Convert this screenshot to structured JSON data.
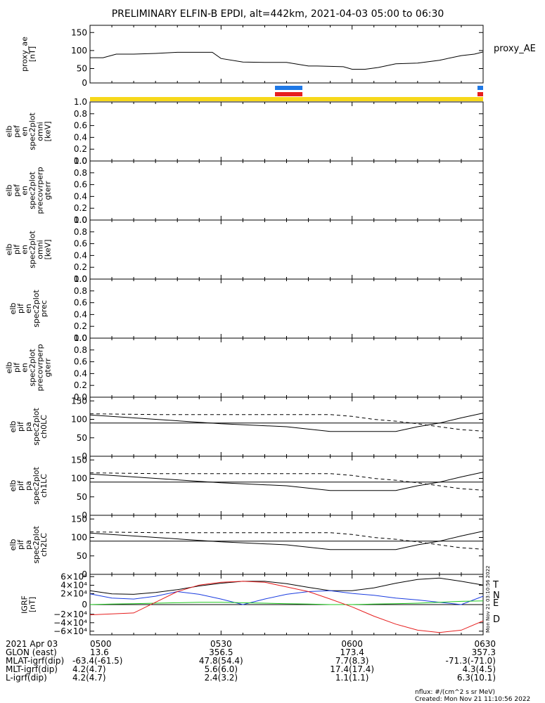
{
  "title": "PRELIMINARY ELFIN-B EPDI, alt=442km, 2021-04-03 05:00 to 06:30",
  "side_label": "proxy_AE",
  "bars": {
    "blue": "#1e78e6",
    "red": "#e61e1e",
    "yellow": "#f7d81a"
  },
  "panels": [
    {
      "id": "proxy-ae",
      "ylabel_lines": [
        "proxy_ae",
        "[nT]"
      ],
      "ticks": [
        "150",
        "100",
        "50",
        "0"
      ]
    },
    {
      "id": "pef-en-omni",
      "ylabel_lines": [
        "elb",
        "pef",
        "en",
        "spec2plot",
        "omni",
        "[keV]"
      ],
      "ticks": [
        "1.0",
        "0.8",
        "0.6",
        "0.4",
        "0.2",
        "0.0"
      ]
    },
    {
      "id": "pef-en-precovrperp",
      "ylabel_lines": [
        "elb",
        "pef",
        "en",
        "spec2plot",
        "precovrperp",
        "gterr"
      ],
      "ticks": [
        "1.0",
        "0.8",
        "0.6",
        "0.4",
        "0.2",
        "0.0"
      ]
    },
    {
      "id": "pif-en-omni",
      "ylabel_lines": [
        "elb",
        "pif",
        "en",
        "spec2plot",
        "omni",
        "[keV]"
      ],
      "ticks": [
        "1.0",
        "0.8",
        "0.6",
        "0.4",
        "0.2",
        "0.0"
      ]
    },
    {
      "id": "pif-en-prec",
      "ylabel_lines": [
        "elb",
        "pif",
        "en",
        "spec2plot",
        "prec"
      ],
      "ticks": [
        "1.0",
        "0.8",
        "0.6",
        "0.4",
        "0.2",
        "0.0"
      ]
    },
    {
      "id": "pif-en-precovrperp",
      "ylabel_lines": [
        "elb",
        "pif",
        "en",
        "spec2plot",
        "precovrperp",
        "gterr"
      ],
      "ticks": [
        "1.0",
        "0.8",
        "0.6",
        "0.4",
        "0.2",
        "0.0"
      ]
    },
    {
      "id": "pa-ch0lc",
      "ylabel_lines": [
        "elb",
        "pif",
        "pa",
        "spec2plot",
        "ch0LC"
      ],
      "ticks": [
        "150",
        "100",
        "50",
        "0"
      ]
    },
    {
      "id": "pa-ch1lc",
      "ylabel_lines": [
        "elb",
        "pif",
        "pa",
        "spec2plot",
        "ch1LC"
      ],
      "ticks": [
        "150",
        "100",
        "50",
        "0"
      ]
    },
    {
      "id": "pa-ch2lc",
      "ylabel_lines": [
        "elb",
        "pif",
        "pa",
        "spec2plot",
        "ch2LC"
      ],
      "ticks": [
        "150",
        "100",
        "50",
        "0"
      ]
    },
    {
      "id": "igrf",
      "ylabel_lines": [
        "IGRF",
        "[nT]"
      ],
      "ticks": [
        "6×10⁴",
        "4×10⁴",
        "2×10⁴",
        "0",
        "−2×10⁴",
        "−4×10⁴",
        "−6×10⁴"
      ]
    }
  ],
  "igrf_legend": [
    {
      "label": "T",
      "color": "#000000"
    },
    {
      "label": "N",
      "color": "#1a3ce0"
    },
    {
      "label": "E",
      "color": "#1ec81e"
    },
    {
      "label": "D",
      "color": "#e61e1e"
    }
  ],
  "stamp_text": "Mon Nov 21 03:10:56 2022",
  "footer": {
    "rows": [
      {
        "label": "2021 Apr 03",
        "values": [
          "0500",
          "0530",
          "0600",
          "0630"
        ]
      },
      {
        "label": "GLON (east)",
        "values": [
          "13.6",
          "356.5",
          "173.4",
          "357.3"
        ]
      },
      {
        "label": "MLAT-igrf(dip)",
        "values": [
          "-63.4(-61.5)",
          "47.8(54.4)",
          "7.7(8.3)",
          "-71.3(-71.0)"
        ]
      },
      {
        "label": "MLT-igrf(dip)",
        "values": [
          "4.2(4.7)",
          "5.6(6.0)",
          "17.4(17.4)",
          "4.3(4.5)"
        ]
      },
      {
        "label": "L-igrf(dip)",
        "values": [
          "4.2(4.7)",
          "2.4(3.2)",
          "1.1(1.1)",
          "6.3(10.1)"
        ]
      }
    ],
    "units_note": "nflux: #/(cm^2 s sr MeV)",
    "created": "Created: Mon Nov 21 11:10:56 2022"
  },
  "chart_data": [
    {
      "type": "line",
      "panel": "proxy-ae",
      "ylim": [
        0,
        160
      ],
      "x": [
        0,
        3,
        6,
        10,
        15,
        20,
        25,
        28,
        30,
        35,
        40,
        45,
        50,
        52,
        55,
        58,
        60,
        63,
        66,
        70,
        75,
        80,
        85,
        88,
        90
      ],
      "series": [
        {
          "name": "proxy_AE",
          "values": [
            70,
            70,
            80,
            80,
            82,
            85,
            85,
            85,
            68,
            58,
            57,
            57,
            47,
            47,
            46,
            45,
            38,
            38,
            43,
            53,
            55,
            63,
            76,
            80,
            86
          ]
        }
      ]
    },
    {
      "type": "line",
      "panel": "pa-ch0lc",
      "ylim": [
        0,
        160
      ],
      "x": [
        0,
        15,
        30,
        45,
        55,
        60,
        65,
        70,
        75,
        80,
        85,
        90
      ],
      "series": [
        {
          "name": "solid",
          "values": [
            112,
            100,
            88,
            80,
            67,
            67,
            67,
            67,
            80,
            90,
            104,
            117
          ]
        },
        {
          "name": "dashed",
          "values": [
            115,
            113,
            113,
            113,
            113,
            108,
            100,
            95,
            88,
            80,
            72,
            68
          ]
        },
        {
          "name": "reference",
          "values": [
            90,
            90,
            90,
            90,
            90,
            90,
            90,
            90,
            90,
            90,
            90,
            90
          ]
        }
      ]
    },
    {
      "type": "line",
      "panel": "pa-ch1lc",
      "ylim": [
        0,
        160
      ],
      "x": [
        0,
        15,
        30,
        45,
        55,
        60,
        65,
        70,
        75,
        80,
        85,
        90
      ],
      "series": [
        {
          "name": "solid",
          "values": [
            112,
            100,
            88,
            80,
            67,
            67,
            67,
            67,
            80,
            90,
            104,
            117
          ]
        },
        {
          "name": "dashed",
          "values": [
            115,
            113,
            113,
            113,
            113,
            108,
            100,
            95,
            88,
            80,
            72,
            68
          ]
        },
        {
          "name": "reference",
          "values": [
            90,
            90,
            90,
            90,
            90,
            90,
            90,
            90,
            90,
            90,
            90,
            90
          ]
        }
      ]
    },
    {
      "type": "line",
      "panel": "pa-ch2lc",
      "ylim": [
        0,
        160
      ],
      "x": [
        0,
        15,
        30,
        45,
        55,
        60,
        65,
        70,
        75,
        80,
        85,
        90
      ],
      "series": [
        {
          "name": "solid",
          "values": [
            112,
            100,
            88,
            80,
            67,
            67,
            67,
            67,
            80,
            90,
            104,
            117
          ]
        },
        {
          "name": "dashed",
          "values": [
            115,
            113,
            113,
            113,
            113,
            108,
            100,
            95,
            88,
            80,
            72,
            68
          ]
        },
        {
          "name": "reference",
          "values": [
            90,
            90,
            90,
            90,
            90,
            90,
            90,
            90,
            90,
            90,
            90,
            90
          ]
        }
      ]
    },
    {
      "type": "line",
      "panel": "igrf",
      "ylim": [
        -65000,
        65000
      ],
      "x": [
        0,
        5,
        10,
        15,
        20,
        25,
        30,
        35,
        40,
        45,
        50,
        55,
        60,
        65,
        70,
        75,
        80,
        85,
        90
      ],
      "series": [
        {
          "name": "T",
          "values": [
            30000,
            23000,
            22000,
            26000,
            32000,
            40000,
            46000,
            50000,
            50000,
            45000,
            37000,
            30000,
            30000,
            36000,
            46000,
            54000,
            57000,
            50000,
            42000
          ]
        },
        {
          "name": "N",
          "values": [
            23000,
            14000,
            12000,
            18000,
            28000,
            22000,
            12000,
            0,
            12000,
            22000,
            28000,
            30000,
            24000,
            20000,
            14000,
            10000,
            5000,
            0,
            18000
          ]
        },
        {
          "name": "E",
          "values": [
            0,
            1000,
            2000,
            3000,
            4000,
            5000,
            5000,
            4000,
            3000,
            2000,
            1000,
            0,
            0,
            1000,
            2000,
            3000,
            5000,
            7000,
            8000
          ]
        },
        {
          "name": "D",
          "values": [
            -22000,
            -20000,
            -18000,
            5000,
            28000,
            42000,
            48000,
            50000,
            48000,
            38000,
            28000,
            12000,
            -5000,
            -25000,
            -42000,
            -55000,
            -60000,
            -55000,
            -35000
          ]
        }
      ]
    }
  ]
}
